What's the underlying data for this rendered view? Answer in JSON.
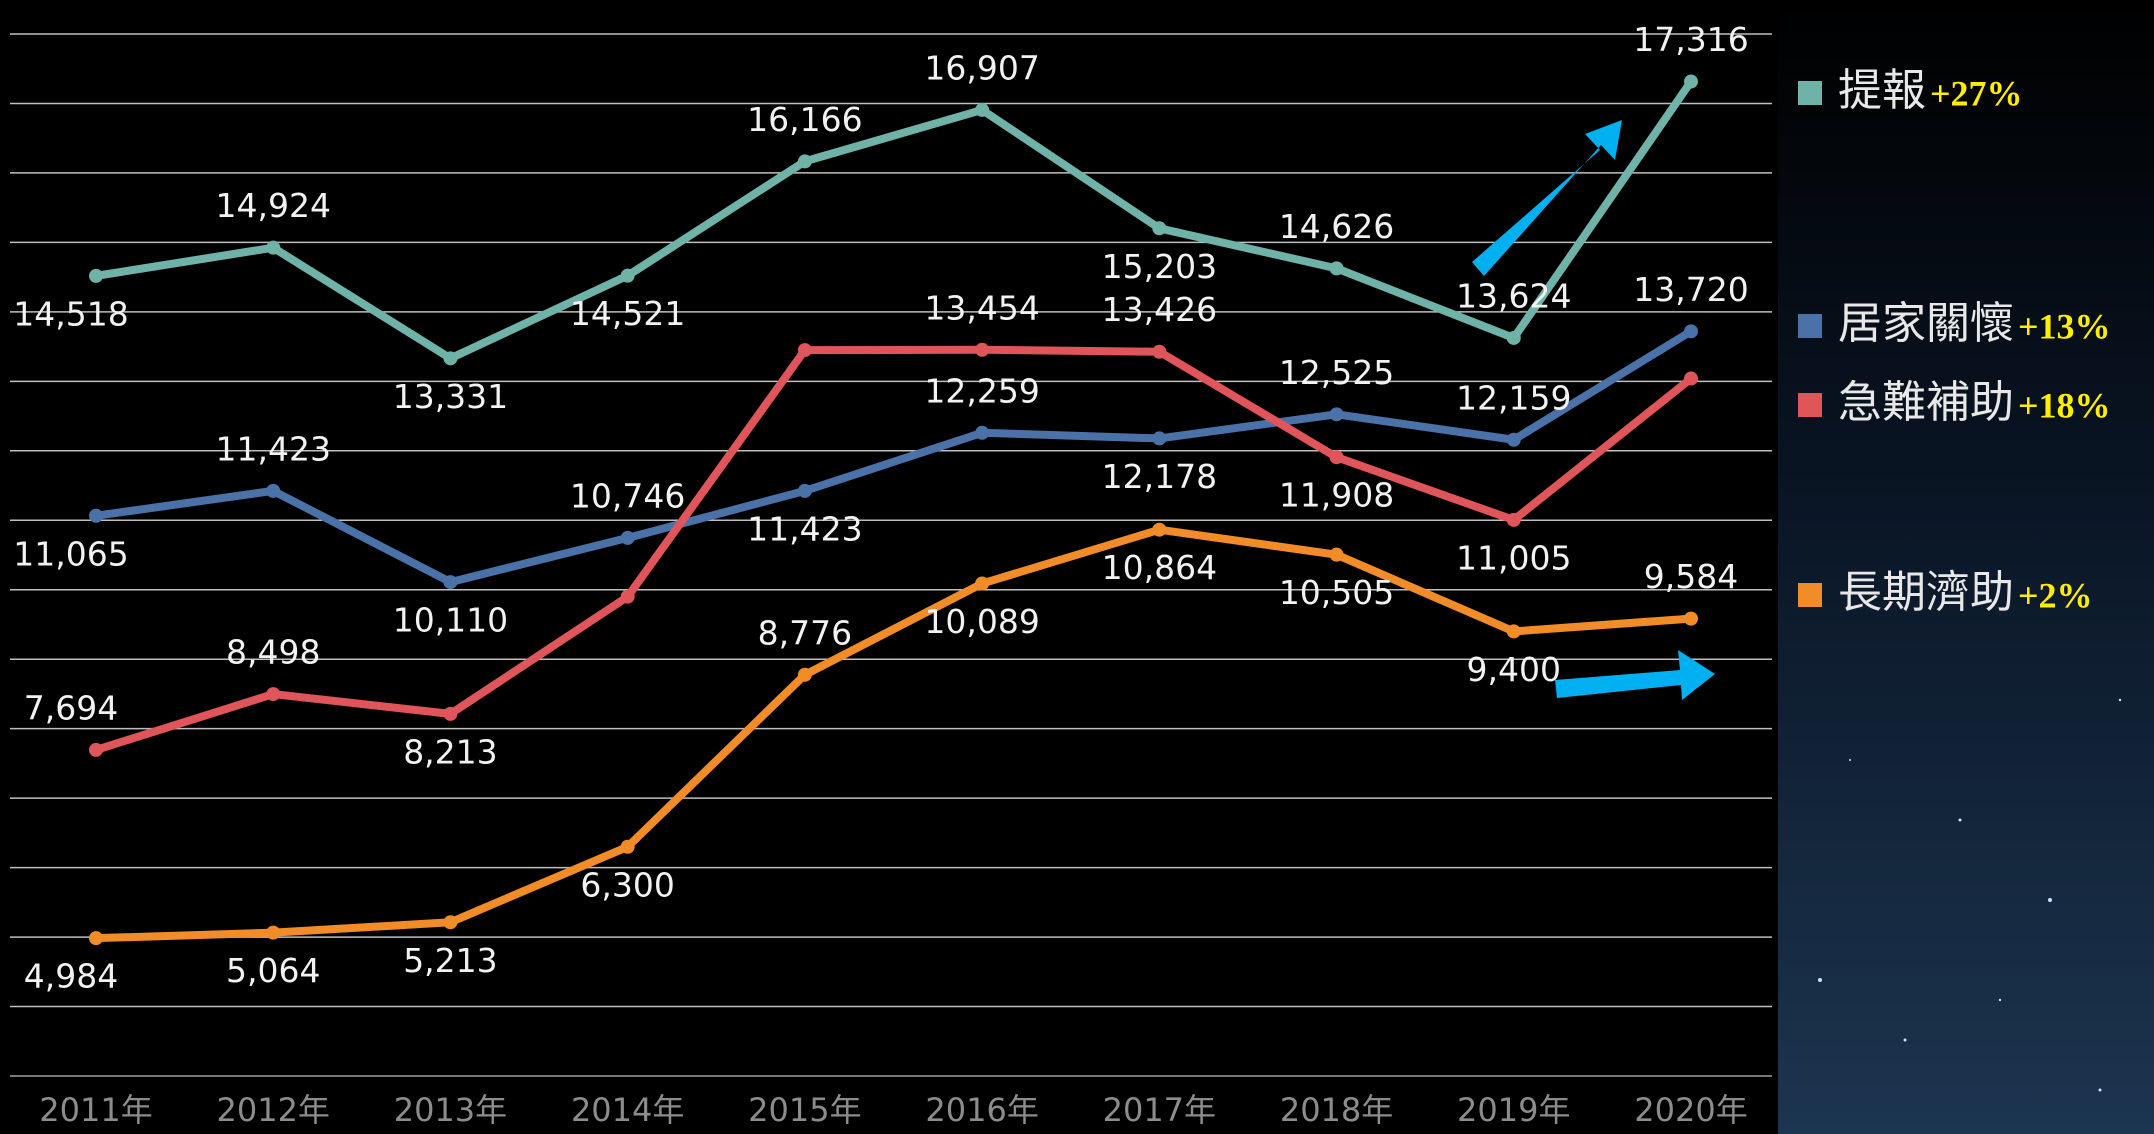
{
  "chart_data": {
    "type": "line",
    "categories": [
      "2011年",
      "2012年",
      "2013年",
      "2014年",
      "2015年",
      "2016年",
      "2017年",
      "2018年",
      "2019年",
      "2020年"
    ],
    "ylim": [
      3000,
      18000
    ],
    "yticks": [
      3000,
      4000,
      5000,
      6000,
      7000,
      8000,
      9000,
      10000,
      11000,
      12000,
      13000,
      14000,
      15000,
      16000,
      17000,
      18000
    ],
    "grid": true,
    "legend": "right",
    "series": [
      {
        "name": "提報",
        "change": "+27%",
        "color": "#6fb3a8",
        "values": [
          14518,
          14924,
          13331,
          14521,
          16166,
          16907,
          15203,
          14626,
          13624,
          17316
        ],
        "value_labels": [
          "14,518",
          "14,924",
          "13,331",
          "14,521",
          "16,166",
          "16,907",
          "15,203",
          "14,626",
          "13,624",
          "17,316"
        ]
      },
      {
        "name": "居家關懷",
        "change": "+13%",
        "color": "#4a72a8",
        "values": [
          11065,
          11423,
          10110,
          10746,
          11423,
          12259,
          12178,
          12525,
          12159,
          13720
        ],
        "value_labels": [
          "11,065",
          "11,423",
          "10,110",
          "10,746",
          "11,423",
          "12,259",
          "12,178",
          "12,525",
          "12,159",
          "13,720"
        ]
      },
      {
        "name": "急難補助",
        "change": "+18%",
        "color": "#e0555a",
        "values": [
          7694,
          8498,
          8213,
          9900,
          13450,
          13454,
          13426,
          11908,
          11005,
          13040
        ],
        "value_labels": [
          "7,694",
          "8,498",
          "8,213",
          null,
          null,
          "13,454",
          "13,426",
          "11,908",
          "11,005",
          null
        ]
      },
      {
        "name": "長期濟助",
        "change": "+2%",
        "color": "#f28c28",
        "values": [
          4984,
          5064,
          5213,
          6300,
          8776,
          10089,
          10864,
          10505,
          9400,
          9584
        ],
        "value_labels": [
          "4,984",
          "5,064",
          "5,213",
          "6,300",
          "8,776",
          "10,089",
          "10,864",
          "10,505",
          "9,400",
          "9,584"
        ]
      }
    ]
  }
}
